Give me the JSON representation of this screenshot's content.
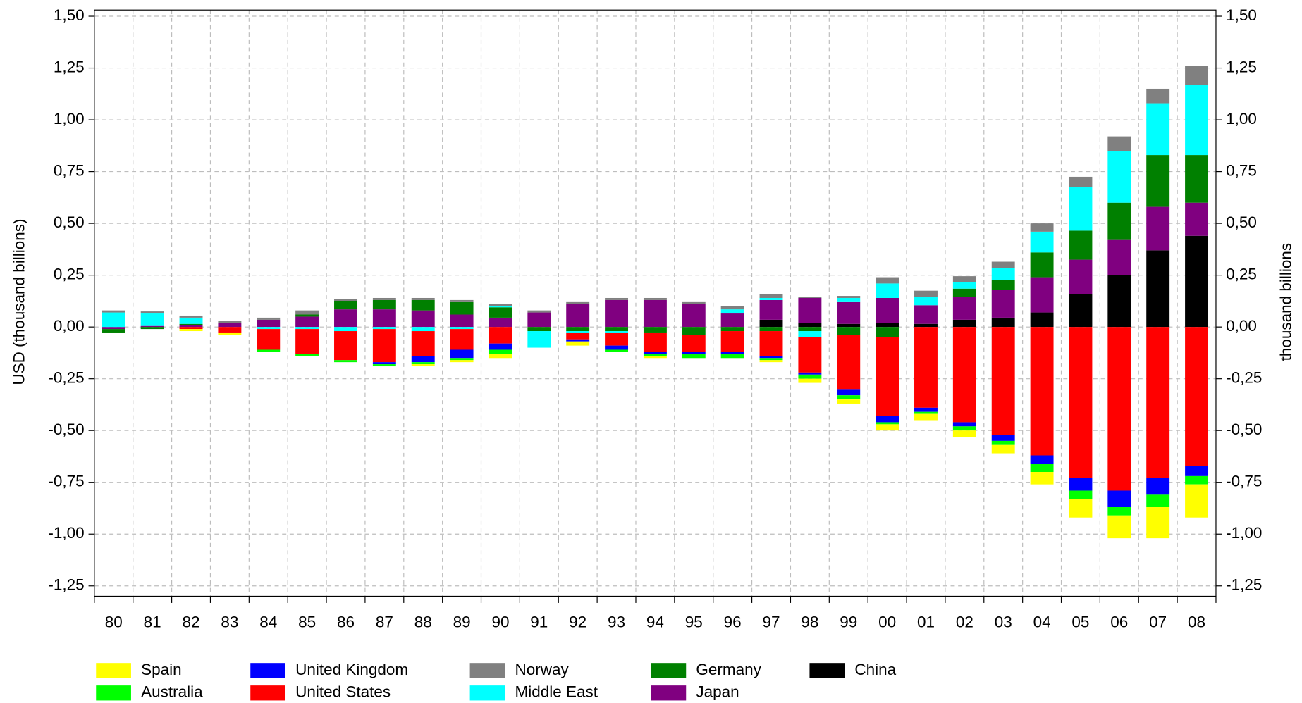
{
  "chart_data": {
    "type": "bar",
    "stacked": true,
    "y_label": "USD (thousand billions)",
    "y2_label": "thousand billions",
    "categories": [
      "80",
      "81",
      "82",
      "83",
      "84",
      "85",
      "86",
      "87",
      "88",
      "89",
      "90",
      "91",
      "92",
      "93",
      "94",
      "95",
      "96",
      "97",
      "98",
      "99",
      "00",
      "01",
      "02",
      "03",
      "04",
      "05",
      "06",
      "07",
      "08"
    ],
    "ylim": [
      -1.3,
      1.53
    ],
    "yticks": [
      {
        "value": -1.25,
        "label": "-1,25"
      },
      {
        "value": -1,
        "label": "-1,00"
      },
      {
        "value": -0.75,
        "label": "-0,75"
      },
      {
        "value": -0.5,
        "label": "-0,50"
      },
      {
        "value": -0.25,
        "label": "-0,25"
      },
      {
        "value": 0,
        "label": "0,00"
      },
      {
        "value": 0.25,
        "label": "0,25"
      },
      {
        "value": 0.5,
        "label": "0,50"
      },
      {
        "value": 0.75,
        "label": "0,75"
      },
      {
        "value": 1,
        "label": "1,00"
      },
      {
        "value": 1.25,
        "label": "1,25"
      },
      {
        "value": 1.5,
        "label": "1,50"
      }
    ],
    "y2lim": [
      -1.3,
      1.53
    ],
    "y2ticks": [
      {
        "value": -1.25,
        "label": "-1,25"
      },
      {
        "value": -1,
        "label": "-1,00"
      },
      {
        "value": -0.75,
        "label": "-0,75"
      },
      {
        "value": -0.5,
        "label": "-0,50"
      },
      {
        "value": -0.25,
        "label": "-0,25"
      },
      {
        "value": 0,
        "label": "0,00"
      },
      {
        "value": 0.25,
        "label": "0,25"
      },
      {
        "value": 0.5,
        "label": "0,50"
      },
      {
        "value": 0.75,
        "label": "0,75"
      },
      {
        "value": 1,
        "label": "1,00"
      },
      {
        "value": 1.25,
        "label": "1,25"
      },
      {
        "value": 1.5,
        "label": "1,50"
      }
    ],
    "grid": true,
    "series": [
      {
        "name": "Spain",
        "color": "#ffff00",
        "values": [
          0,
          0,
          -0.01,
          -0.01,
          0,
          0,
          0,
          0,
          -0.01,
          -0.01,
          -0.02,
          0,
          -0.02,
          0,
          -0.01,
          0,
          0,
          -0.01,
          -0.02,
          -0.02,
          -0.03,
          -0.03,
          -0.03,
          -0.04,
          -0.06,
          -0.09,
          -0.11,
          -0.15,
          -0.16
        ]
      },
      {
        "name": "Australia",
        "color": "#00ff00",
        "values": [
          0,
          0,
          0,
          0,
          -0.01,
          -0.01,
          -0.01,
          -0.01,
          -0.01,
          -0.01,
          -0.02,
          0,
          0,
          -0.01,
          -0.01,
          -0.02,
          -0.02,
          -0.01,
          -0.02,
          -0.02,
          -0.01,
          -0.01,
          -0.02,
          -0.02,
          -0.04,
          -0.04,
          -0.04,
          -0.06,
          -0.04
        ]
      },
      {
        "name": "United Kingdom",
        "color": "#0000ff",
        "values": [
          0,
          0,
          0,
          0,
          0,
          0,
          0,
          -0.01,
          -0.03,
          -0.04,
          -0.03,
          0,
          -0.01,
          -0.02,
          -0.01,
          -0.01,
          -0.01,
          -0.01,
          -0.01,
          -0.03,
          -0.03,
          -0.02,
          -0.02,
          -0.03,
          -0.04,
          -0.06,
          -0.08,
          -0.08,
          -0.05
        ]
      },
      {
        "name": "United States",
        "color": "#ff0000",
        "values": [
          0,
          0,
          -0.01,
          -0.03,
          -0.1,
          -0.12,
          -0.14,
          -0.16,
          -0.12,
          -0.1,
          -0.08,
          0,
          -0.03,
          -0.06,
          -0.09,
          -0.08,
          -0.1,
          -0.12,
          -0.17,
          -0.26,
          -0.38,
          -0.39,
          -0.46,
          -0.52,
          -0.62,
          -0.73,
          -0.79,
          -0.73,
          -0.67
        ]
      },
      {
        "name": "Norway",
        "color": "#808080",
        "values": [
          0.01,
          0.01,
          0.01,
          0.01,
          0.01,
          0.02,
          0.01,
          0.01,
          0.01,
          0.01,
          0.01,
          0.01,
          0.01,
          0.01,
          0.01,
          0.01,
          0.015,
          0.02,
          0.005,
          0.01,
          0.03,
          0.03,
          0.03,
          0.03,
          0.04,
          0.05,
          0.07,
          0.07,
          0.09
        ]
      },
      {
        "name": "Middle East",
        "color": "#00ffff",
        "values": [
          0.07,
          0.06,
          0.03,
          0,
          -0.01,
          -0.01,
          -0.02,
          -0.01,
          -0.02,
          -0.01,
          0.005,
          -0.08,
          -0.01,
          -0.01,
          0,
          0,
          0.02,
          0.01,
          -0.03,
          0.02,
          0.07,
          0.04,
          0.03,
          0.06,
          0.1,
          0.21,
          0.25,
          0.25,
          0.34
        ]
      },
      {
        "name": "Germany",
        "color": "#008000",
        "values": [
          -0.02,
          -0.01,
          0.005,
          0,
          0,
          0.01,
          0.04,
          0.045,
          0.05,
          0.06,
          0.05,
          -0.02,
          -0.02,
          -0.02,
          -0.03,
          -0.04,
          -0.02,
          -0.02,
          -0.02,
          -0.04,
          -0.05,
          0,
          0.04,
          0.045,
          0.12,
          0.14,
          0.18,
          0.25,
          0.23
        ]
      },
      {
        "name": "Japan",
        "color": "#800080",
        "values": [
          -0.01,
          0.005,
          0.01,
          0.02,
          0.035,
          0.05,
          0.085,
          0.085,
          0.08,
          0.06,
          0.045,
          0.07,
          0.11,
          0.13,
          0.13,
          0.11,
          0.065,
          0.095,
          0.12,
          0.105,
          0.12,
          0.09,
          0.11,
          0.135,
          0.17,
          0.165,
          0.17,
          0.21,
          0.16
        ]
      },
      {
        "name": "China",
        "color": "#000000",
        "values": [
          0,
          0,
          0,
          0,
          0,
          0,
          0,
          0,
          0,
          0,
          0,
          0,
          0,
          0,
          0,
          0,
          0,
          0.035,
          0.02,
          0.015,
          0.02,
          0.015,
          0.035,
          0.045,
          0.07,
          0.16,
          0.25,
          0.37,
          0.44
        ]
      }
    ]
  }
}
